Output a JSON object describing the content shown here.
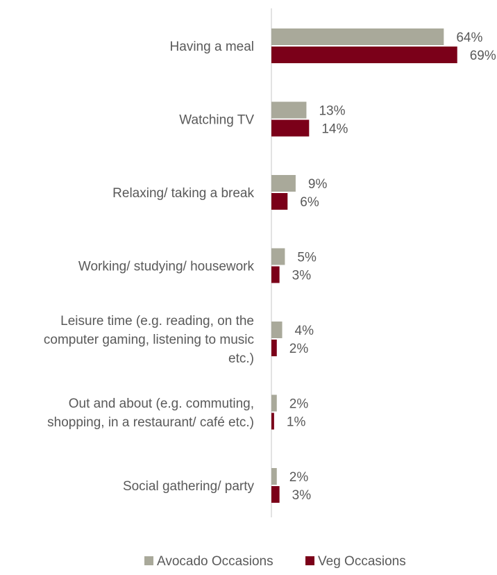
{
  "chart_data": {
    "type": "bar",
    "orientation": "horizontal",
    "categories": [
      [
        "Having a meal"
      ],
      [
        "Watching TV"
      ],
      [
        "Relaxing/ taking a break"
      ],
      [
        "Working/ studying/ housework"
      ],
      [
        "Leisure time (e.g. reading, on the",
        "computer gaming, listening to music",
        "etc.)"
      ],
      [
        "Out and about (e.g. commuting,",
        "shopping, in a restaurant/ café etc.)"
      ],
      [
        "Social gathering/ party"
      ]
    ],
    "series": [
      {
        "name": "Avocado Occasions",
        "color": "#a9a99a",
        "values": [
          64,
          13,
          9,
          5,
          4,
          2,
          2
        ],
        "labels": [
          "64%",
          "13%",
          "9%",
          "5%",
          "4%",
          "2%",
          "2%"
        ]
      },
      {
        "name": "Veg Occasions",
        "color": "#7b0019",
        "values": [
          69,
          14,
          6,
          3,
          2,
          1,
          3
        ],
        "labels": [
          "69%",
          "14%",
          "6%",
          "3%",
          "2%",
          "1%",
          "3%"
        ]
      }
    ],
    "value_unit": "%",
    "grid": false,
    "legend_position": "bottom"
  }
}
